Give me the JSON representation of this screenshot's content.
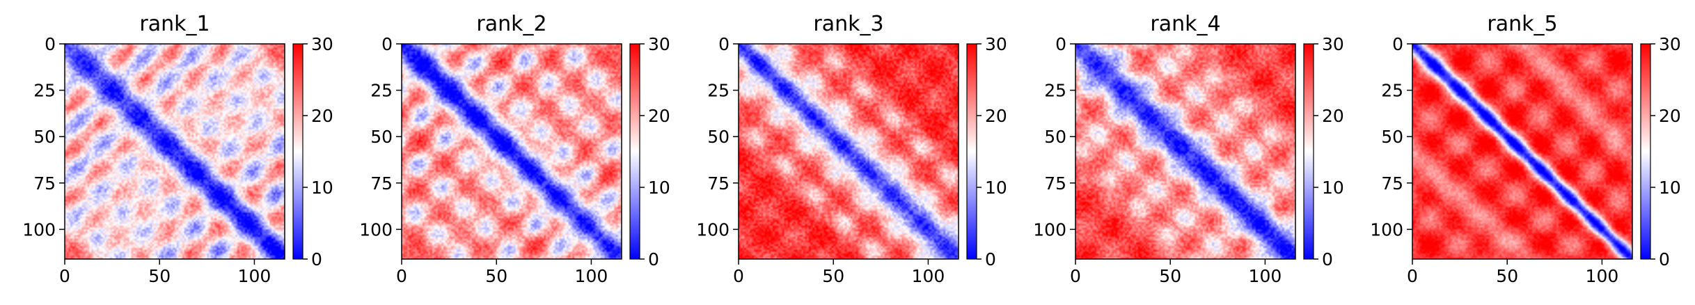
{
  "chart_data": [
    {
      "type": "heatmap",
      "title": "rank_1",
      "size": 116,
      "xticks": [
        0,
        50,
        100
      ],
      "yticks": [
        0,
        25,
        50,
        75,
        100
      ],
      "xlim": [
        0,
        116
      ],
      "ylim": [
        116,
        0
      ],
      "colorbar": {
        "min": 0,
        "max": 30,
        "ticks": [
          0,
          10,
          20,
          30
        ],
        "colormap": "bwr"
      },
      "pattern": {
        "diag_width": 7,
        "base": 21,
        "noise": 3,
        "band_offsets": [
          28,
          56,
          84
        ],
        "band_strength": 11,
        "band_width": 9,
        "blob_period": 24,
        "blob_strength": 4
      }
    },
    {
      "type": "heatmap",
      "title": "rank_2",
      "size": 116,
      "xticks": [
        0,
        50,
        100
      ],
      "yticks": [
        0,
        25,
        50,
        75,
        100
      ],
      "xlim": [
        0,
        116
      ],
      "ylim": [
        116,
        0
      ],
      "colorbar": {
        "min": 0,
        "max": 30,
        "ticks": [
          0,
          10,
          20,
          30
        ],
        "colormap": "bwr"
      },
      "pattern": {
        "diag_width": 9,
        "base": 24,
        "noise": 3,
        "band_offsets": [
          28,
          56,
          84
        ],
        "band_strength": 11,
        "band_width": 8,
        "blob_period": 24,
        "blob_strength": 4
      }
    },
    {
      "type": "heatmap",
      "title": "rank_3",
      "size": 116,
      "xticks": [
        0,
        50,
        100
      ],
      "yticks": [
        0,
        25,
        50,
        75,
        100
      ],
      "xlim": [
        0,
        116
      ],
      "ylim": [
        116,
        0
      ],
      "colorbar": {
        "min": 0,
        "max": 30,
        "ticks": [
          0,
          10,
          20,
          30
        ],
        "colormap": "bwr"
      },
      "pattern": {
        "diag_width": 8,
        "base": 27,
        "noise": 3,
        "band_offsets": [
          20,
          40
        ],
        "band_strength": 11,
        "band_width": 6,
        "blob_period": 30,
        "blob_strength": 3
      }
    },
    {
      "type": "heatmap",
      "title": "rank_4",
      "size": 116,
      "xticks": [
        0,
        50,
        100
      ],
      "yticks": [
        0,
        25,
        50,
        75,
        100
      ],
      "xlim": [
        0,
        116
      ],
      "ylim": [
        116,
        0
      ],
      "colorbar": {
        "min": 0,
        "max": 30,
        "ticks": [
          0,
          10,
          20,
          30
        ],
        "colormap": "bwr"
      },
      "pattern": {
        "diag_width": 8,
        "base": 26,
        "noise": 3,
        "band_offsets": [
          18,
          36,
          54
        ],
        "band_strength": 12,
        "band_width": 6,
        "blob_period": 30,
        "blob_strength": 3
      }
    },
    {
      "type": "heatmap",
      "title": "rank_5",
      "size": 116,
      "xticks": [
        0,
        50,
        100
      ],
      "yticks": [
        0,
        25,
        50,
        75,
        100
      ],
      "xlim": [
        0,
        116
      ],
      "ylim": [
        116,
        0
      ],
      "colorbar": {
        "min": 0,
        "max": 30,
        "ticks": [
          0,
          10,
          20,
          30
        ],
        "colormap": "bwr"
      },
      "pattern": {
        "diag_width": 4,
        "base": 27,
        "noise": 2,
        "band_offsets": [
          60
        ],
        "band_strength": 6,
        "band_width": 10,
        "blob_period": 30,
        "blob_strength": 5
      }
    }
  ]
}
